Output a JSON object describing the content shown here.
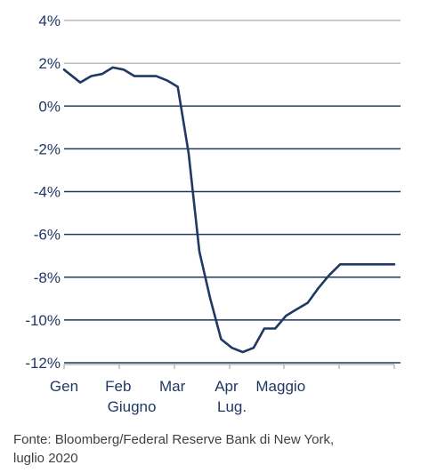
{
  "chart_data": {
    "type": "line",
    "y_ticks": [
      4,
      2,
      0,
      -2,
      -4,
      -6,
      -8,
      -10,
      -12
    ],
    "y_tick_labels": [
      "4%",
      "2%",
      "0%",
      "-2%",
      "-4%",
      "-6%",
      "-8%",
      "-10%",
      "-12%"
    ],
    "ylim": [
      -12,
      4
    ],
    "grid": true,
    "x_labels": [
      {
        "text": "Gen",
        "x": 0,
        "row": 1
      },
      {
        "text": "Feb",
        "x": 1,
        "row": 1
      },
      {
        "text": "Mar",
        "x": 2,
        "row": 1
      },
      {
        "text": "Apr",
        "x": 3,
        "row": 1
      },
      {
        "text": "Maggio",
        "x": 4,
        "row": 1
      },
      {
        "text": "Giugno",
        "x": 1.25,
        "row": 2
      },
      {
        "text": "Lug.",
        "x": 3.1,
        "row": 2
      }
    ],
    "xlim": [
      0,
      6.1
    ],
    "series": [
      {
        "color": "#1f3864",
        "x": [
          0,
          0.1,
          0.3,
          0.5,
          0.7,
          0.9,
          1.1,
          1.3,
          1.5,
          1.7,
          1.9,
          2.1,
          2.3,
          2.5,
          2.7,
          2.9,
          3.1,
          3.3,
          3.5,
          3.7,
          3.9,
          4.1,
          4.3,
          4.5,
          4.7,
          4.9,
          5.1,
          5.3,
          5.5,
          5.7,
          5.9,
          6.1
        ],
        "y": [
          1.7,
          1.5,
          1.1,
          1.4,
          1.5,
          1.8,
          1.7,
          1.4,
          1.4,
          1.4,
          1.2,
          0.9,
          -2.2,
          -6.8,
          -9.0,
          -10.9,
          -11.3,
          -11.5,
          -11.3,
          -10.4,
          -10.4,
          -9.8,
          -9.5,
          -9.2,
          -8.5,
          -7.9,
          -7.4,
          -7.4,
          -7.4,
          -7.4,
          -7.4,
          -7.4
        ]
      }
    ]
  },
  "source": {
    "line1": "Fonte: Bloomberg/Federal Reserve Bank di New York,",
    "line2": "luglio 2020"
  }
}
